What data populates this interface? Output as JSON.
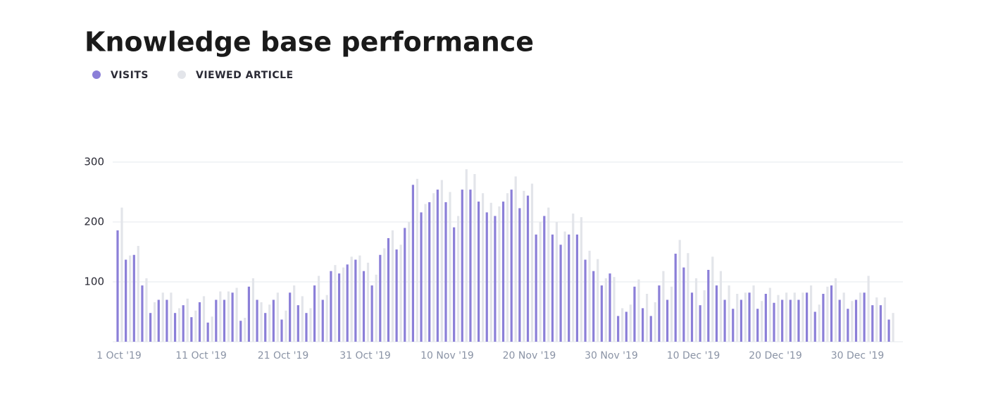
{
  "chart_data": {
    "type": "bar",
    "title": "Knowledge base performance",
    "categories": [
      "1 Oct '19",
      null,
      null,
      null,
      null,
      null,
      null,
      null,
      null,
      null,
      "11 Oct '19",
      null,
      null,
      null,
      null,
      null,
      null,
      null,
      null,
      null,
      "21 Oct '19",
      null,
      null,
      null,
      null,
      null,
      null,
      null,
      null,
      null,
      "31 Oct '19",
      null,
      null,
      null,
      null,
      null,
      null,
      null,
      null,
      null,
      "10 Nov '19",
      null,
      null,
      null,
      null,
      null,
      null,
      null,
      null,
      null,
      "20 Nov '19",
      null,
      null,
      null,
      null,
      null,
      null,
      null,
      null,
      null,
      "30 Nov '19",
      null,
      null,
      null,
      null,
      null,
      null,
      null,
      null,
      null,
      "10 Dec '19",
      null,
      null,
      null,
      null,
      null,
      null,
      null,
      null,
      null,
      "20 Dec '19",
      null,
      null,
      null,
      null,
      null,
      null,
      null,
      null,
      null,
      "30 Dec '19",
      null,
      null,
      null,
      null
    ],
    "series": [
      {
        "name": "VISITS",
        "color": "#8b7fd8",
        "values": [
          186,
          137,
          145,
          94,
          48,
          70,
          70,
          48,
          61,
          41,
          66,
          32,
          70,
          70,
          82,
          35,
          92,
          70,
          48,
          70,
          37,
          82,
          61,
          48,
          94,
          70,
          118,
          114,
          129,
          137,
          118,
          94,
          145,
          173,
          154,
          190,
          262,
          216,
          233,
          254,
          233,
          191,
          254,
          254,
          234,
          216,
          210,
          234,
          254,
          223,
          244,
          179,
          210,
          179,
          162,
          179,
          179,
          137,
          118,
          94,
          114,
          43,
          50,
          92,
          56,
          43,
          94,
          70,
          147,
          124,
          82,
          61,
          120,
          94,
          70,
          55,
          70,
          82,
          55,
          80,
          65,
          70,
          70,
          70,
          82,
          50,
          80,
          94,
          70,
          55,
          70,
          82,
          61,
          61,
          37
        ]
      },
      {
        "name": "VIEWED ARTICLE",
        "color": "#e3e5ea",
        "values": [
          224,
          144,
          160,
          106,
          66,
          82,
          82,
          56,
          72,
          52,
          76,
          42,
          84,
          84,
          90,
          40,
          106,
          66,
          62,
          82,
          52,
          94,
          76,
          56,
          110,
          78,
          128,
          124,
          142,
          144,
          132,
          112,
          156,
          186,
          162,
          200,
          272,
          230,
          248,
          270,
          250,
          210,
          288,
          280,
          248,
          232,
          226,
          248,
          276,
          252,
          264,
          200,
          224,
          200,
          184,
          214,
          208,
          152,
          138,
          106,
          108,
          56,
          62,
          104,
          80,
          66,
          118,
          92,
          170,
          148,
          106,
          86,
          142,
          118,
          94,
          80,
          82,
          94,
          68,
          90,
          78,
          82,
          82,
          82,
          94,
          62,
          92,
          106,
          82,
          68,
          82,
          110,
          74,
          74,
          48
        ]
      }
    ],
    "ylim": [
      0,
      300
    ],
    "yticks": [
      100,
      200,
      300
    ],
    "grid": true
  }
}
